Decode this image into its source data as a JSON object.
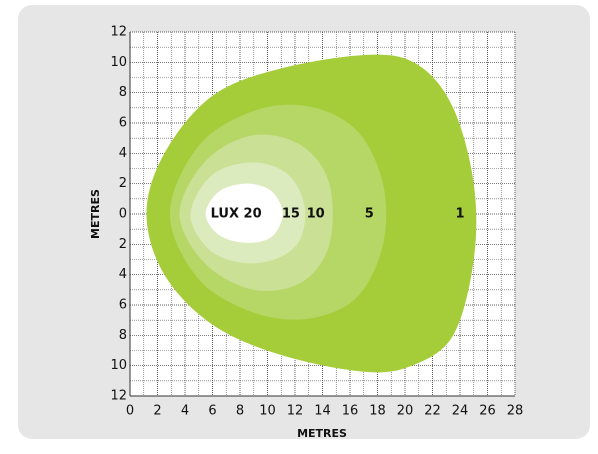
{
  "chart_data": {
    "type": "contour",
    "xlabel": "METRES",
    "ylabel": "METRES",
    "xlim": [
      0,
      28
    ],
    "ylim": [
      -12,
      12
    ],
    "xticks": [
      0,
      2,
      4,
      6,
      8,
      10,
      12,
      14,
      16,
      18,
      20,
      22,
      24,
      26,
      28
    ],
    "yticks": [
      12,
      10,
      8,
      6,
      4,
      2,
      0,
      {
        "value": -2,
        "label": "2"
      },
      {
        "value": -4,
        "label": "4"
      },
      {
        "value": -6,
        "label": "6"
      },
      {
        "value": -8,
        "label": "8"
      },
      {
        "value": -10,
        "label": "10"
      },
      {
        "value": -12,
        "label": "12"
      }
    ],
    "grid": true,
    "grid_step": 1,
    "values": [
      1,
      5,
      10,
      15,
      20
    ],
    "value_labels": [
      "1",
      "5",
      "10",
      "15",
      "LUX 20"
    ],
    "contours": [
      {
        "color": "#a5cd3a",
        "x": [
          1.2,
          2.5,
          6,
          11,
          17.5,
          21,
          23.5,
          25,
          25,
          23.5,
          20.5,
          17,
          11,
          6,
          2.5
        ],
        "y": [
          0,
          4,
          7.8,
          9.6,
          10.5,
          9.8,
          7,
          2,
          -3,
          -8,
          -10,
          -10.4,
          -9.3,
          -7.3,
          -4
        ]
      },
      {
        "color": "#b6d665",
        "x": [
          2.9,
          5,
          9,
          13,
          16.5,
          18.4,
          18.4,
          16.5,
          13,
          9,
          5
        ],
        "y": [
          0,
          4.5,
          6.8,
          7.1,
          5.5,
          2,
          -2,
          -5.5,
          -6.9,
          -6.5,
          -4.3
        ]
      },
      {
        "color": "#c9e095",
        "x": [
          3.6,
          5.5,
          9,
          12.5,
          14.5,
          14.5,
          12.5,
          9,
          5.5
        ],
        "y": [
          0,
          3.5,
          5.2,
          4.5,
          2,
          -2,
          -4.5,
          -5,
          -3.3
        ]
      },
      {
        "color": "#dcebbd",
        "x": [
          4.4,
          6,
          9,
          11.5,
          12.7,
          12.3,
          10.5,
          8,
          5.7
        ],
        "y": [
          0,
          2.6,
          3.4,
          2.6,
          0.5,
          -1.8,
          -3,
          -3.2,
          -2.3
        ]
      },
      {
        "color": "#ffffff",
        "x": [
          5.5,
          6.5,
          8.5,
          10.3,
          11.1,
          10.3,
          8.5,
          6.5
        ],
        "y": [
          0,
          1.5,
          2,
          1.5,
          0,
          -1.5,
          -1.9,
          -1.4
        ]
      }
    ]
  }
}
